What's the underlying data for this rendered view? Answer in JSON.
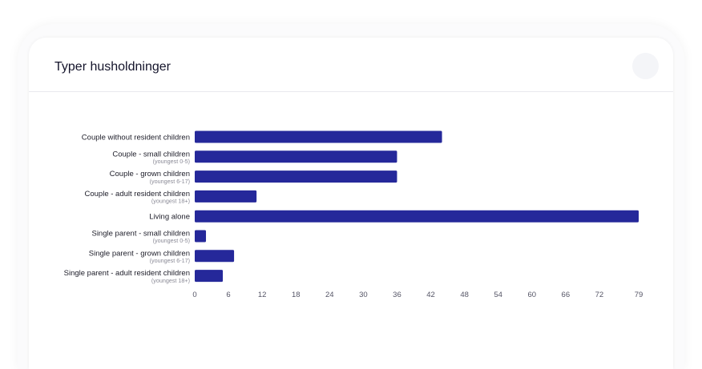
{
  "card": {
    "title": "Typer husholdninger"
  },
  "colors": {
    "bar": "#25289a",
    "card_background": "#ffffff",
    "title_text": "#14142b"
  },
  "chart_data": {
    "type": "bar",
    "orientation": "horizontal",
    "title": "",
    "xlabel": "",
    "ylabel": "",
    "categories": [
      {
        "label": "Couple without resident children",
        "sublabel": ""
      },
      {
        "label": "Couple - small children",
        "sublabel": "(youngest 0-5)"
      },
      {
        "label": "Couple - grown children",
        "sublabel": "(youngest 6-17)"
      },
      {
        "label": "Couple - adult resident children",
        "sublabel": "(youngest 18+)"
      },
      {
        "label": "Living alone",
        "sublabel": ""
      },
      {
        "label": "Single parent - small children",
        "sublabel": "(youngest 0-5)"
      },
      {
        "label": "Single parent - grown children",
        "sublabel": "(youngest 6-17)"
      },
      {
        "label": "Single parent - adult resident children",
        "sublabel": "(youngest 18+)"
      }
    ],
    "values": [
      44,
      36,
      36,
      11,
      79,
      2,
      7,
      5
    ],
    "xlim": [
      0,
      79
    ],
    "xticks": [
      0,
      6,
      12,
      18,
      24,
      30,
      36,
      42,
      48,
      54,
      60,
      66,
      72,
      79
    ],
    "grid": false,
    "legend": "none"
  }
}
